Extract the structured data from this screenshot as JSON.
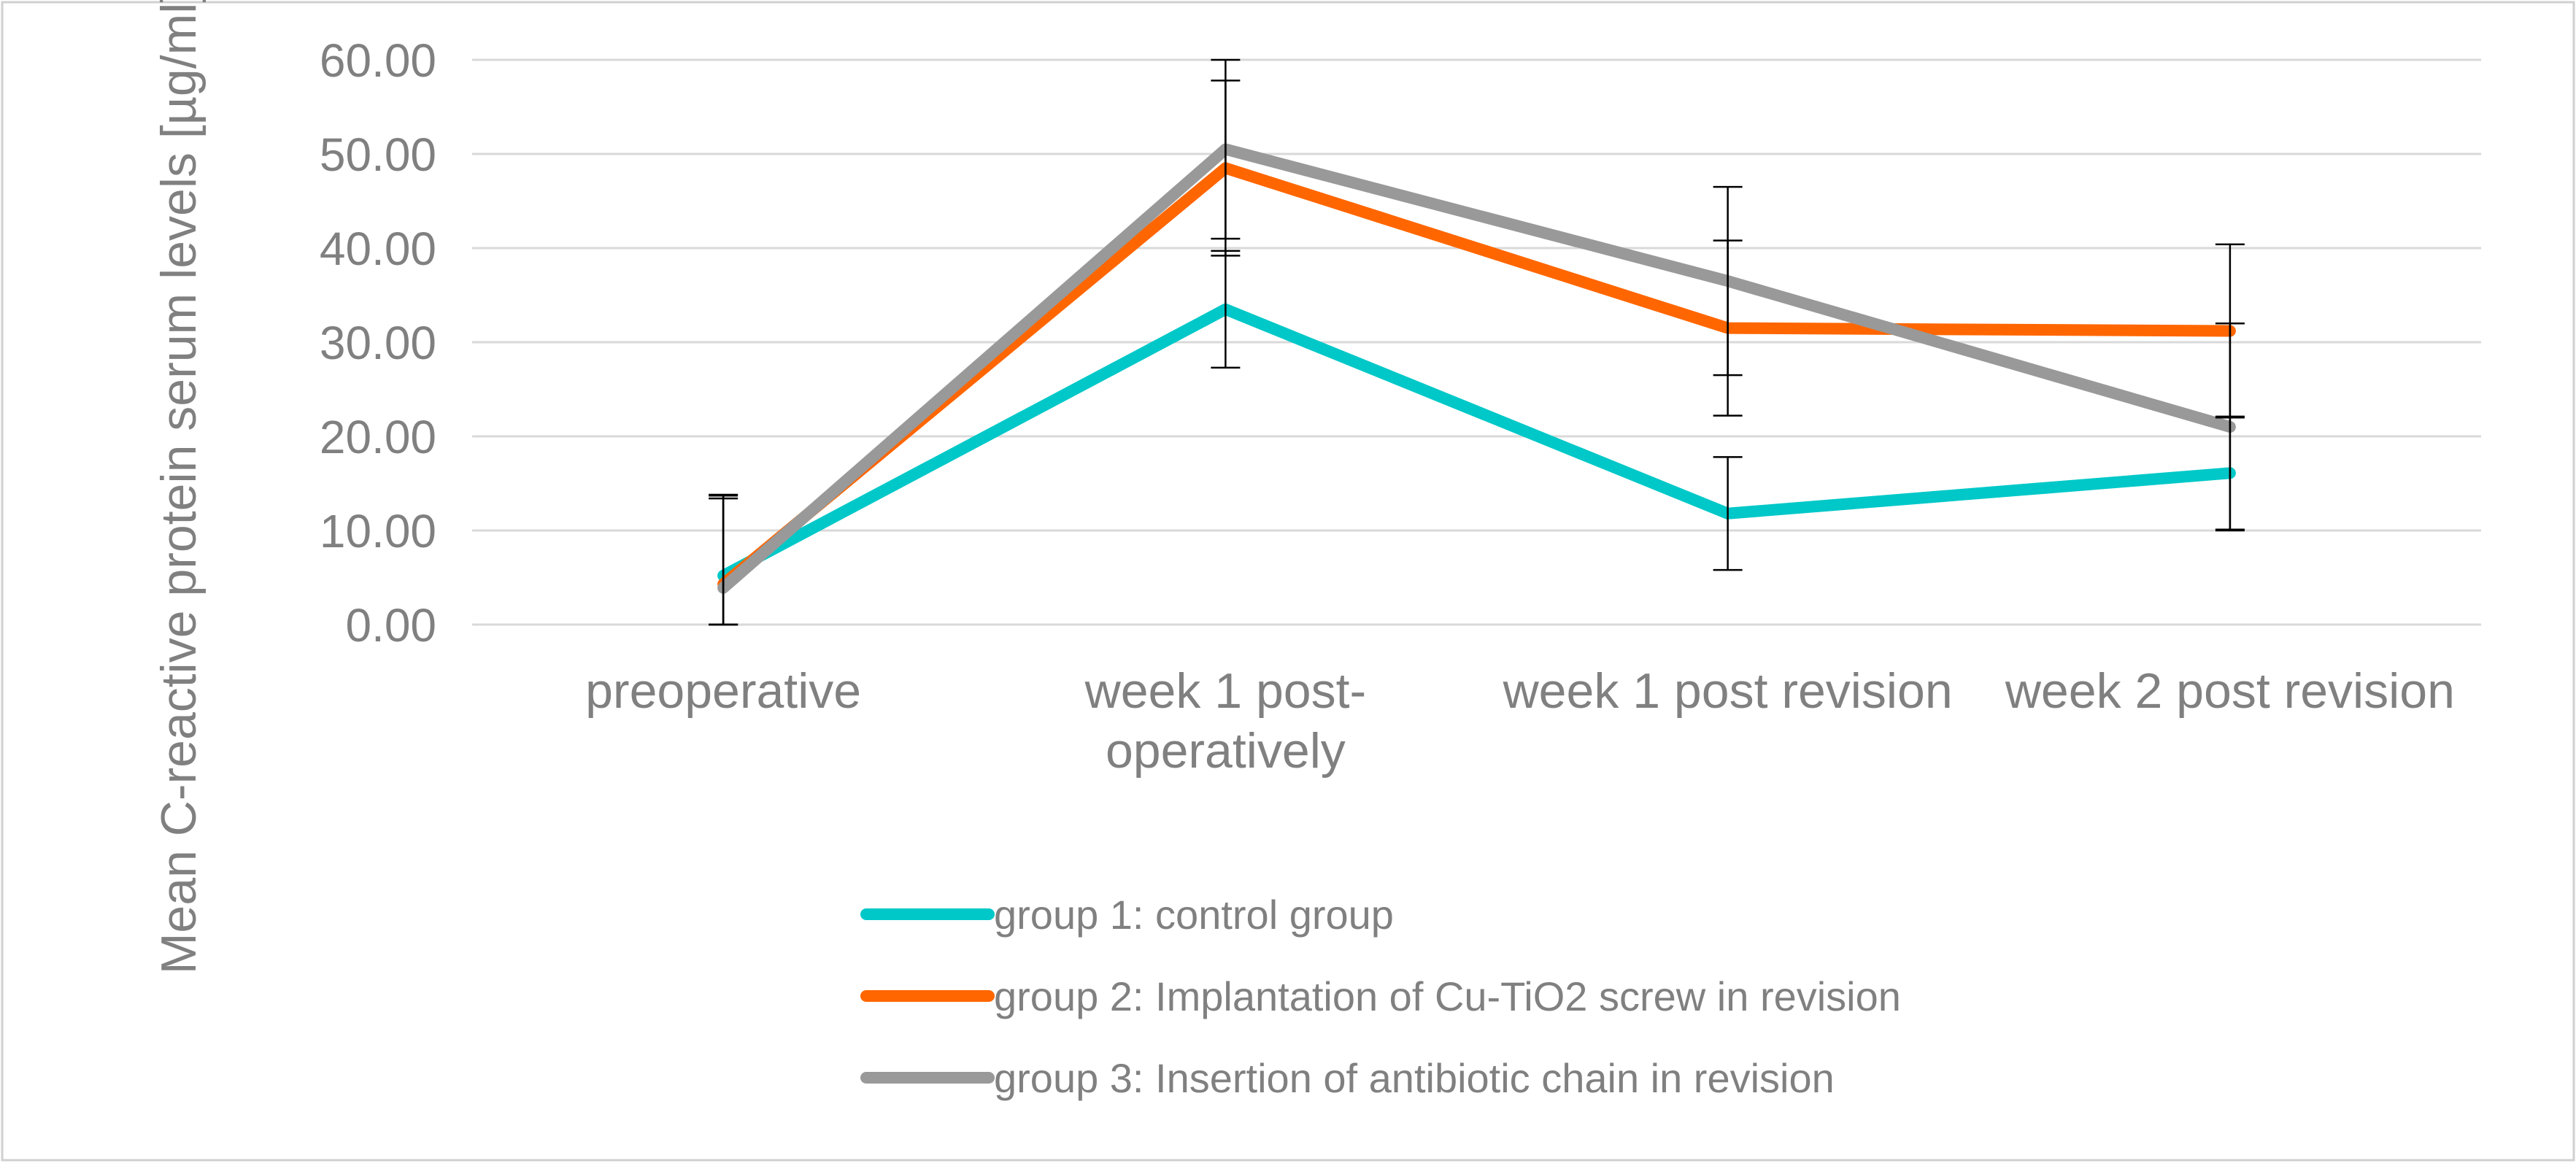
{
  "chart_data": {
    "type": "line",
    "title": "",
    "xlabel": "",
    "ylabel": "Mean C-reactive protein serum levels [µg/ml]",
    "ylim": [
      0,
      60
    ],
    "yticks": [
      "0.00",
      "10.00",
      "20.00",
      "30.00",
      "40.00",
      "50.00",
      "60.00"
    ],
    "categories": [
      [
        "preoperative"
      ],
      [
        "week 1 post-",
        "operatively"
      ],
      [
        "week 1 post revision"
      ],
      [
        "week 2 post revision"
      ]
    ],
    "grid": true,
    "legend_position": "bottom",
    "series": [
      {
        "name": "group 1: control group",
        "color": "#00C8C8",
        "values": [
          5.2,
          33.5,
          11.8,
          16.1
        ],
        "error": [
          8.5,
          6.2,
          6.0,
          6.0
        ]
      },
      {
        "name": "group 2: Implantation of Cu-TiO2 screw in revision",
        "color": "#FF6600",
        "values": [
          4.3,
          48.5,
          31.5,
          31.2
        ],
        "error": [
          9.5,
          9.3,
          9.3,
          9.2
        ]
      },
      {
        "name": "group 3: Insertion of antibiotic chain in revision",
        "color": "#999999",
        "values": [
          3.9,
          50.5,
          36.5,
          21.0
        ],
        "error": [
          9.5,
          9.5,
          10.0,
          11.0
        ]
      }
    ]
  }
}
